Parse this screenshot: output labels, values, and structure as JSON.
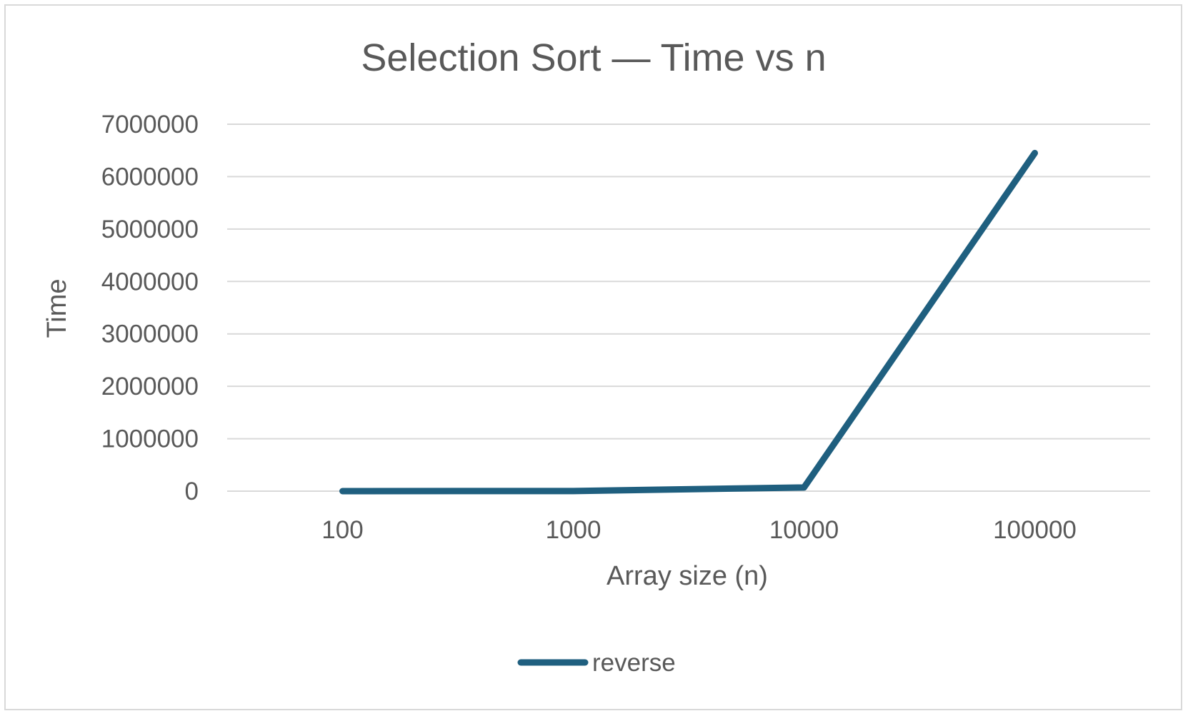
{
  "chart_data": {
    "type": "line",
    "title": "Selection Sort — Time vs n",
    "xlabel": "Array size (n)",
    "ylabel": "Time",
    "categories": [
      "100",
      "1000",
      "10000",
      "100000"
    ],
    "series": [
      {
        "name": "reverse",
        "values": [
          0,
          2000,
          70000,
          6450000
        ],
        "color": "#1f5f7f"
      }
    ],
    "ylim": [
      0,
      7000000
    ],
    "yticks": [
      "0",
      "1000000",
      "2000000",
      "3000000",
      "4000000",
      "5000000",
      "6000000",
      "7000000"
    ],
    "grid": true,
    "legend_position": "bottom"
  }
}
